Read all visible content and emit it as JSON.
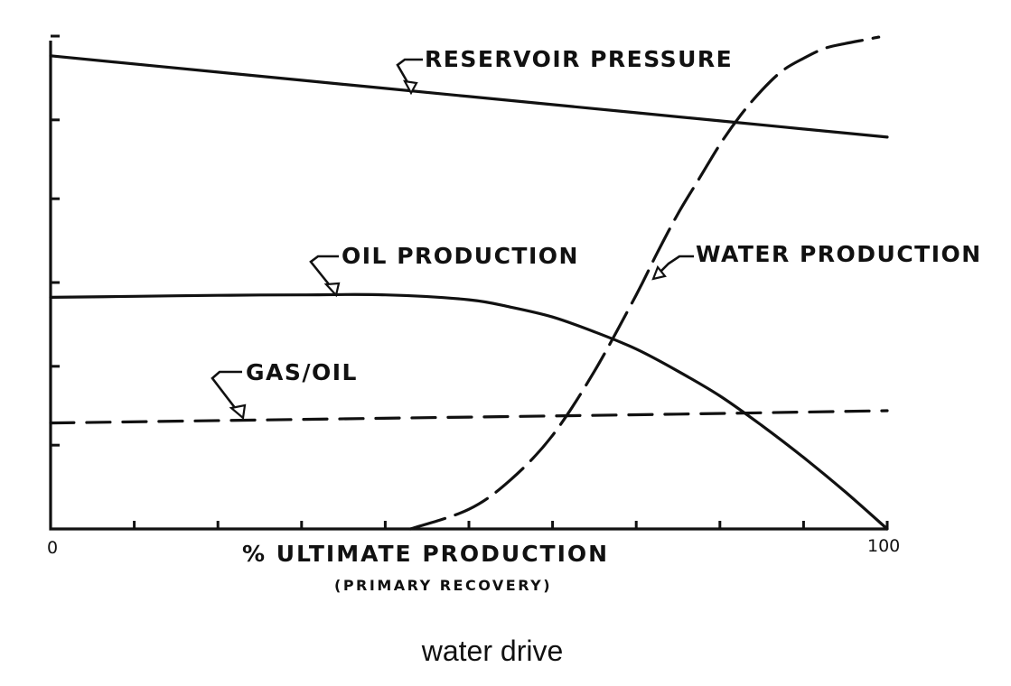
{
  "caption": "water drive",
  "chart_data": {
    "type": "line",
    "title": "",
    "xlabel": "% ULTIMATE PRODUCTION",
    "xlabel_sub": "(PRIMARY RECOVERY)",
    "ylabel": "",
    "xlim": [
      0,
      100
    ],
    "ylim": [
      0,
      100
    ],
    "x_tick_labels": [
      {
        "x": 0,
        "label": "0"
      },
      {
        "x": 100,
        "label": "100"
      }
    ],
    "x_ticks": [
      0,
      10,
      20,
      30,
      40,
      50,
      60,
      70,
      80,
      90,
      100
    ],
    "y_ticks": [
      0,
      17,
      33,
      50,
      67,
      83,
      100
    ],
    "grid": false,
    "legend": "none",
    "series": [
      {
        "name": "RESERVOIR PRESSURE",
        "style": "solid",
        "x": [
          0,
          20,
          40,
          60,
          80,
          100
        ],
        "y": [
          96,
          92.7,
          89.4,
          86.1,
          82.8,
          79.5
        ]
      },
      {
        "name": "OIL PRODUCTION",
        "style": "solid",
        "x": [
          0,
          10,
          20,
          30,
          40,
          50,
          55,
          60,
          65,
          70,
          75,
          80,
          85,
          90,
          95,
          100
        ],
        "y": [
          47,
          47.2,
          47.4,
          47.5,
          47.5,
          46.5,
          45,
          43,
          40,
          36.5,
          32,
          27,
          21,
          14.5,
          7.5,
          0
        ]
      },
      {
        "name": "GAS/OIL",
        "style": "dashed",
        "x": [
          0,
          25,
          50,
          75,
          100
        ],
        "y": [
          21.5,
          22.1,
          22.7,
          23.3,
          24
        ]
      },
      {
        "name": "WATER PRODUCTION",
        "style": "dashed",
        "x": [
          43,
          50,
          55,
          60,
          65,
          70,
          72.5,
          75,
          77.5,
          80,
          82.5,
          85,
          87.5,
          90,
          92.5,
          95,
          97.5,
          99
        ],
        "y": [
          0,
          4,
          10,
          19,
          32,
          47.5,
          56,
          64,
          71,
          78,
          84,
          89,
          93,
          95.5,
          97.5,
          98.5,
          99.3,
          99.8
        ]
      }
    ],
    "annotations": [
      {
        "text": "RESERVOIR PRESSURE",
        "target_series": "RESERVOIR PRESSURE"
      },
      {
        "text": "OIL PRODUCTION",
        "target_series": "OIL PRODUCTION"
      },
      {
        "text": "GAS/OIL",
        "target_series": "GAS/OIL"
      },
      {
        "text": "WATER PRODUCTION",
        "target_series": "WATER PRODUCTION"
      }
    ]
  }
}
